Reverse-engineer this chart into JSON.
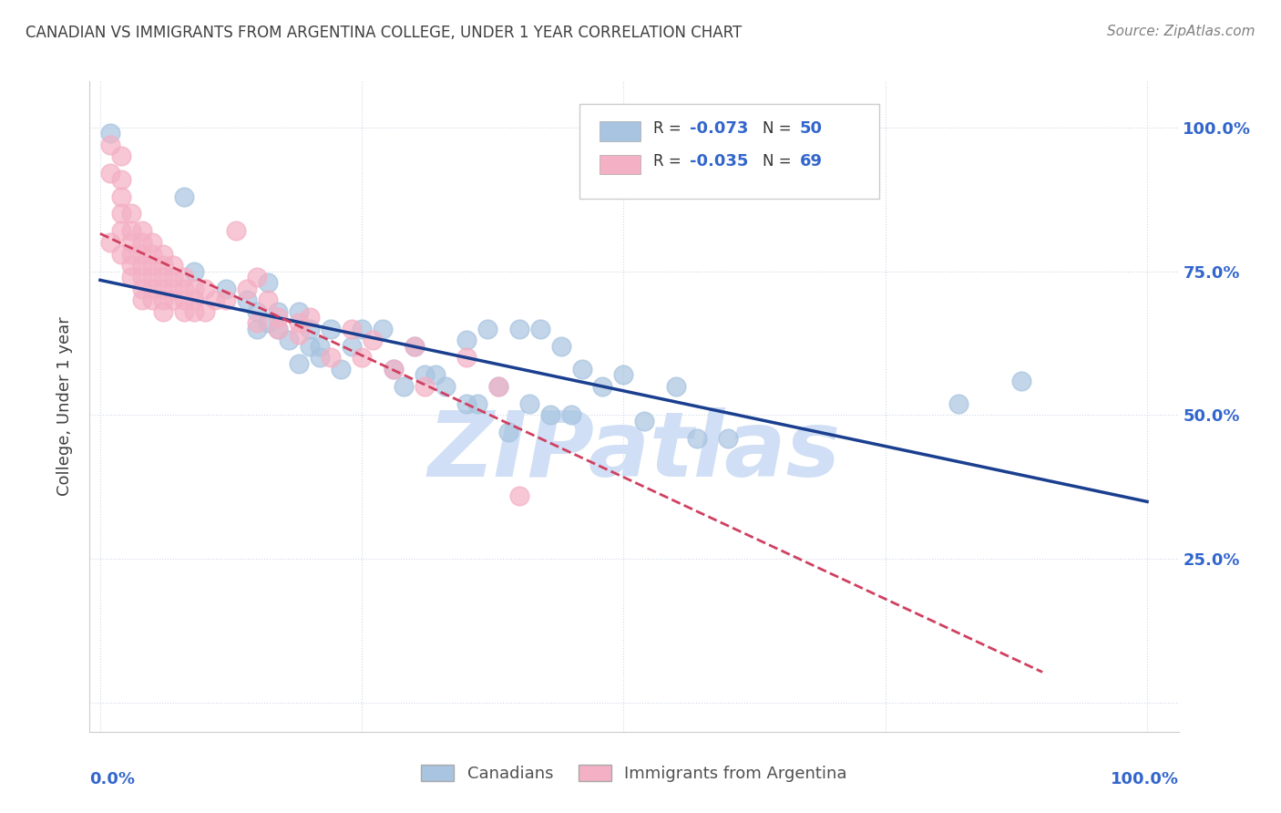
{
  "title": "CANADIAN VS IMMIGRANTS FROM ARGENTINA COLLEGE, UNDER 1 YEAR CORRELATION CHART",
  "source": "Source: ZipAtlas.com",
  "ylabel": "College, Under 1 year",
  "legend_label1": "Canadians",
  "legend_label2": "Immigrants from Argentina",
  "r1": -0.073,
  "n1": 50,
  "r2": -0.035,
  "n2": 69,
  "watermark": "ZIPatlas",
  "blue_scatter_x": [
    0.01,
    0.08,
    0.09,
    0.12,
    0.14,
    0.15,
    0.15,
    0.16,
    0.16,
    0.17,
    0.17,
    0.18,
    0.19,
    0.19,
    0.2,
    0.2,
    0.21,
    0.21,
    0.22,
    0.23,
    0.24,
    0.25,
    0.27,
    0.28,
    0.29,
    0.3,
    0.31,
    0.32,
    0.33,
    0.35,
    0.36,
    0.38,
    0.39,
    0.41,
    0.43,
    0.45,
    0.48,
    0.5,
    0.52,
    0.55,
    0.57,
    0.6,
    0.35,
    0.37,
    0.4,
    0.42,
    0.44,
    0.46,
    0.82,
    0.88
  ],
  "blue_scatter_y": [
    0.99,
    0.88,
    0.75,
    0.72,
    0.7,
    0.68,
    0.65,
    0.66,
    0.73,
    0.68,
    0.65,
    0.63,
    0.68,
    0.59,
    0.65,
    0.62,
    0.62,
    0.6,
    0.65,
    0.58,
    0.62,
    0.65,
    0.65,
    0.58,
    0.55,
    0.62,
    0.57,
    0.57,
    0.55,
    0.52,
    0.52,
    0.55,
    0.47,
    0.52,
    0.5,
    0.5,
    0.55,
    0.57,
    0.49,
    0.55,
    0.46,
    0.46,
    0.63,
    0.65,
    0.65,
    0.65,
    0.62,
    0.58,
    0.52,
    0.56
  ],
  "pink_scatter_x": [
    0.01,
    0.01,
    0.01,
    0.02,
    0.02,
    0.02,
    0.02,
    0.02,
    0.02,
    0.03,
    0.03,
    0.03,
    0.03,
    0.03,
    0.03,
    0.04,
    0.04,
    0.04,
    0.04,
    0.04,
    0.04,
    0.04,
    0.05,
    0.05,
    0.05,
    0.05,
    0.05,
    0.05,
    0.06,
    0.06,
    0.06,
    0.06,
    0.06,
    0.06,
    0.07,
    0.07,
    0.07,
    0.07,
    0.08,
    0.08,
    0.08,
    0.08,
    0.09,
    0.09,
    0.09,
    0.1,
    0.1,
    0.11,
    0.12,
    0.13,
    0.14,
    0.15,
    0.16,
    0.17,
    0.19,
    0.2,
    0.22,
    0.25,
    0.28,
    0.31,
    0.15,
    0.17,
    0.19,
    0.24,
    0.26,
    0.3,
    0.35,
    0.38,
    0.4
  ],
  "pink_scatter_y": [
    0.97,
    0.92,
    0.8,
    0.95,
    0.91,
    0.88,
    0.85,
    0.82,
    0.78,
    0.85,
    0.82,
    0.8,
    0.78,
    0.76,
    0.74,
    0.82,
    0.8,
    0.78,
    0.76,
    0.74,
    0.72,
    0.7,
    0.8,
    0.78,
    0.76,
    0.74,
    0.72,
    0.7,
    0.78,
    0.76,
    0.74,
    0.72,
    0.7,
    0.68,
    0.76,
    0.74,
    0.72,
    0.7,
    0.74,
    0.72,
    0.7,
    0.68,
    0.72,
    0.7,
    0.68,
    0.72,
    0.68,
    0.7,
    0.7,
    0.82,
    0.72,
    0.74,
    0.7,
    0.67,
    0.66,
    0.67,
    0.6,
    0.6,
    0.58,
    0.55,
    0.66,
    0.65,
    0.64,
    0.65,
    0.63,
    0.62,
    0.6,
    0.55,
    0.36
  ],
  "blue_color": "#a8c4e0",
  "pink_color": "#f4b0c4",
  "blue_line_color": "#1a3f8f",
  "pink_line_color": "#d04060",
  "background_color": "#ffffff",
  "grid_color": "#d0d8e8",
  "title_color": "#404040",
  "axis_label_color": "#3366cc",
  "watermark_color": "#d0dff5"
}
